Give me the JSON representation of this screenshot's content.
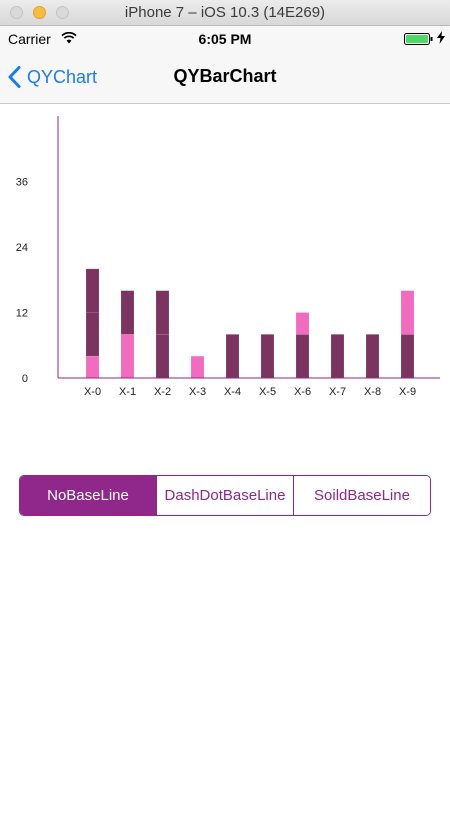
{
  "window": {
    "title": "iPhone 7 – iOS 10.3 (14E269)"
  },
  "status_bar": {
    "carrier": "Carrier",
    "time": "6:05 PM"
  },
  "nav": {
    "back_label": "QYChart",
    "title": "QYBarChart"
  },
  "colors": {
    "accent": "#90278a",
    "bar_dark": "#7b3360",
    "bar_pink": "#f16bbf",
    "ios_blue": "#1a7cf5"
  },
  "segments": [
    {
      "label": "NoBaseLine",
      "selected": true
    },
    {
      "label": "DashDotBaseLine",
      "selected": false
    },
    {
      "label": "SoildBaseLine",
      "selected": false
    }
  ],
  "chart_data": {
    "type": "bar",
    "stacked": true,
    "categories": [
      "X-0",
      "X-1",
      "X-2",
      "X-3",
      "X-4",
      "X-5",
      "X-6",
      "X-7",
      "X-8",
      "X-9"
    ],
    "y_ticks": [
      "0",
      "12",
      "24",
      "36"
    ],
    "ylim": [
      0,
      48
    ],
    "grid": false,
    "series": [
      {
        "color": "#f16bbf",
        "values": [
          4,
          8,
          0,
          4,
          0,
          0,
          0,
          0,
          0,
          0
        ]
      },
      {
        "color": "#7b3360",
        "values": [
          8,
          8,
          8,
          0,
          8,
          8,
          8,
          8,
          8,
          8
        ]
      },
      {
        "color": "#7b3360",
        "values": [
          8,
          0,
          8,
          0,
          0,
          0,
          0,
          0,
          0,
          0
        ]
      },
      {
        "color": "#f16bbf",
        "values": [
          0,
          0,
          0,
          0,
          0,
          0,
          4,
          0,
          0,
          8
        ]
      }
    ]
  }
}
